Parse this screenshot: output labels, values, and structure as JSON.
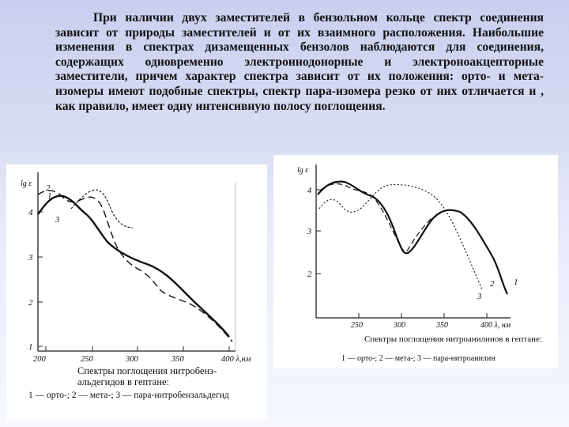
{
  "paragraph": "При наличии двух заместителей в бензольном кольце спектр соединения зависит от природы заместителей и от их взаимного расположения. Наибольшие изменения в спектрах дизамещенных бензолов наблюдаются для соединения, содержащих одновременно электроннодонорные и электроноакцепторные заместители, причем характер спектра зависит от их положения: орто- и мета-изомеры имеют подобные спектры, спектр пара-изомера резко от них отличается и , как правило, имеет одну интенсивную полосу поглощения.",
  "figure1": {
    "y_axis_title": "lg ε",
    "y_ticks": [
      "1",
      "2",
      "3",
      "4"
    ],
    "x_ticks": [
      "200",
      "250",
      "300",
      "350",
      "400 λ,нм"
    ],
    "curve_labels": [
      "2",
      "1",
      "3"
    ],
    "caption": "Спектры поглощения нитробенз-альдегидов в гептане:",
    "caption_items": "1 — орто-; 2 — мета-; 3 — пара-нитробензальдегид",
    "line_color": "#111111"
  },
  "figure2": {
    "y_axis_title": "lg ε",
    "y_ticks": [
      "2",
      "3",
      "4"
    ],
    "x_ticks": [
      "250",
      "300",
      "350",
      "400  λ, нм"
    ],
    "curve_labels": [
      "2",
      "3",
      "1"
    ],
    "caption": "Спектры поглощения нитроанилинов в гептане:",
    "caption_items": "1 — орто-; 2 — мета-; 3 — пара-нитроанилин",
    "line_color": "#111111"
  }
}
